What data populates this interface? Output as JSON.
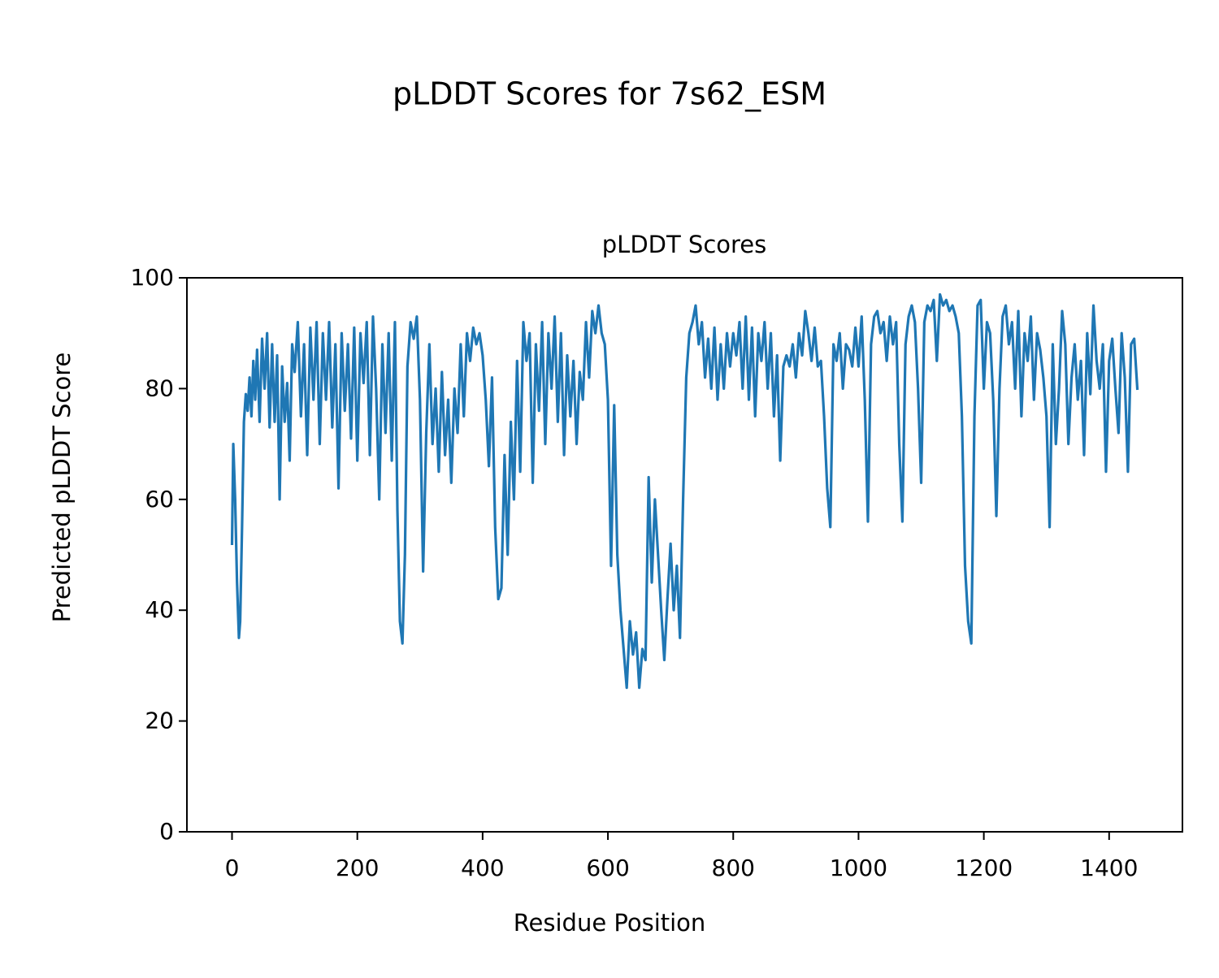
{
  "chart_data": {
    "type": "line",
    "suptitle": "pLDDT Scores for 7s62_ESM",
    "title": "pLDDT Scores",
    "xlabel": "Residue Position",
    "ylabel": "Predicted pLDDT Score",
    "color": "#1f77b4",
    "xlim": [
      -72,
      1517
    ],
    "ylim": [
      0,
      100
    ],
    "xticks": [
      0,
      200,
      400,
      600,
      800,
      1000,
      1200,
      1400
    ],
    "yticks": [
      0,
      20,
      40,
      60,
      80,
      100
    ],
    "grid": false,
    "x": [
      0,
      2,
      5,
      8,
      11,
      13,
      16,
      19,
      22,
      25,
      28,
      31,
      34,
      37,
      40,
      44,
      48,
      52,
      56,
      60,
      64,
      68,
      72,
      76,
      80,
      84,
      88,
      92,
      96,
      100,
      105,
      110,
      115,
      120,
      125,
      130,
      135,
      140,
      145,
      150,
      155,
      160,
      165,
      170,
      175,
      180,
      185,
      190,
      195,
      200,
      205,
      210,
      215,
      220,
      225,
      230,
      235,
      240,
      245,
      250,
      255,
      260,
      264,
      268,
      272,
      276,
      280,
      285,
      290,
      295,
      300,
      305,
      310,
      315,
      320,
      325,
      330,
      335,
      340,
      345,
      350,
      355,
      360,
      365,
      370,
      375,
      380,
      385,
      390,
      395,
      400,
      405,
      410,
      415,
      420,
      425,
      430,
      435,
      440,
      445,
      450,
      455,
      460,
      465,
      470,
      475,
      480,
      485,
      490,
      495,
      500,
      505,
      510,
      515,
      520,
      525,
      530,
      535,
      540,
      545,
      550,
      555,
      560,
      565,
      570,
      575,
      580,
      585,
      590,
      595,
      600,
      605,
      610,
      615,
      620,
      625,
      630,
      635,
      640,
      645,
      650,
      655,
      660,
      665,
      670,
      675,
      680,
      685,
      690,
      695,
      700,
      705,
      710,
      715,
      720,
      725,
      730,
      735,
      740,
      745,
      750,
      755,
      760,
      765,
      770,
      775,
      780,
      785,
      790,
      795,
      800,
      805,
      810,
      815,
      820,
      825,
      830,
      835,
      840,
      845,
      850,
      855,
      860,
      865,
      870,
      875,
      880,
      885,
      890,
      895,
      900,
      905,
      910,
      915,
      920,
      925,
      930,
      935,
      940,
      945,
      950,
      955,
      960,
      965,
      970,
      975,
      980,
      985,
      990,
      995,
      1000,
      1005,
      1010,
      1015,
      1020,
      1025,
      1030,
      1035,
      1040,
      1045,
      1050,
      1055,
      1060,
      1065,
      1070,
      1075,
      1080,
      1085,
      1090,
      1095,
      1100,
      1105,
      1110,
      1115,
      1120,
      1125,
      1130,
      1135,
      1140,
      1145,
      1150,
      1155,
      1160,
      1165,
      1170,
      1175,
      1180,
      1185,
      1190,
      1195,
      1200,
      1205,
      1210,
      1215,
      1220,
      1225,
      1230,
      1235,
      1240,
      1245,
      1250,
      1255,
      1260,
      1265,
      1270,
      1275,
      1280,
      1285,
      1290,
      1295,
      1300,
      1305,
      1310,
      1315,
      1320,
      1325,
      1330,
      1335,
      1340,
      1345,
      1350,
      1355,
      1360,
      1365,
      1370,
      1375,
      1380,
      1385,
      1390,
      1395,
      1400,
      1405,
      1410,
      1415,
      1420,
      1425,
      1430,
      1435,
      1440,
      1445
    ],
    "values": [
      52,
      70,
      60,
      45,
      35,
      38,
      55,
      74,
      79,
      76,
      82,
      75,
      85,
      78,
      87,
      74,
      89,
      80,
      90,
      73,
      88,
      74,
      86,
      60,
      84,
      74,
      81,
      67,
      88,
      83,
      92,
      75,
      88,
      68,
      91,
      78,
      92,
      70,
      90,
      78,
      92,
      73,
      88,
      62,
      90,
      76,
      88,
      71,
      91,
      67,
      90,
      81,
      92,
      68,
      93,
      80,
      60,
      88,
      72,
      90,
      67,
      92,
      58,
      38,
      34,
      50,
      84,
      92,
      89,
      93,
      78,
      47,
      72,
      88,
      70,
      80,
      65,
      83,
      68,
      78,
      63,
      80,
      72,
      88,
      75,
      90,
      85,
      91,
      88,
      90,
      86,
      78,
      66,
      82,
      55,
      42,
      44,
      68,
      50,
      74,
      60,
      85,
      65,
      92,
      85,
      90,
      63,
      88,
      76,
      92,
      70,
      90,
      80,
      93,
      74,
      90,
      68,
      86,
      75,
      85,
      70,
      83,
      78,
      92,
      82,
      94,
      90,
      95,
      90,
      88,
      78,
      48,
      77,
      50,
      40,
      33,
      26,
      38,
      32,
      36,
      26,
      33,
      31,
      64,
      45,
      60,
      50,
      40,
      31,
      42,
      52,
      40,
      48,
      35,
      60,
      82,
      90,
      92,
      95,
      88,
      92,
      82,
      89,
      80,
      91,
      78,
      88,
      80,
      90,
      84,
      90,
      86,
      92,
      80,
      93,
      78,
      91,
      75,
      90,
      85,
      92,
      80,
      90,
      75,
      86,
      67,
      84,
      86,
      84,
      88,
      82,
      90,
      86,
      94,
      90,
      85,
      91,
      84,
      85,
      75,
      62,
      55,
      88,
      85,
      90,
      80,
      88,
      87,
      84,
      91,
      84,
      93,
      78,
      56,
      88,
      93,
      94,
      90,
      92,
      85,
      93,
      88,
      92,
      70,
      56,
      88,
      93,
      95,
      92,
      80,
      63,
      92,
      95,
      94,
      96,
      85,
      97,
      95,
      96,
      94,
      95,
      93,
      90,
      75,
      48,
      38,
      34,
      75,
      95,
      96,
      80,
      92,
      90,
      78,
      57,
      80,
      93,
      95,
      88,
      92,
      80,
      94,
      75,
      90,
      85,
      93,
      78,
      90,
      87,
      82,
      75,
      55,
      88,
      70,
      80,
      94,
      88,
      70,
      82,
      88,
      78,
      85,
      68,
      90,
      79,
      95,
      85,
      80,
      88,
      65,
      85,
      89,
      80,
      72,
      90,
      82,
      65,
      88,
      89,
      80
    ]
  }
}
